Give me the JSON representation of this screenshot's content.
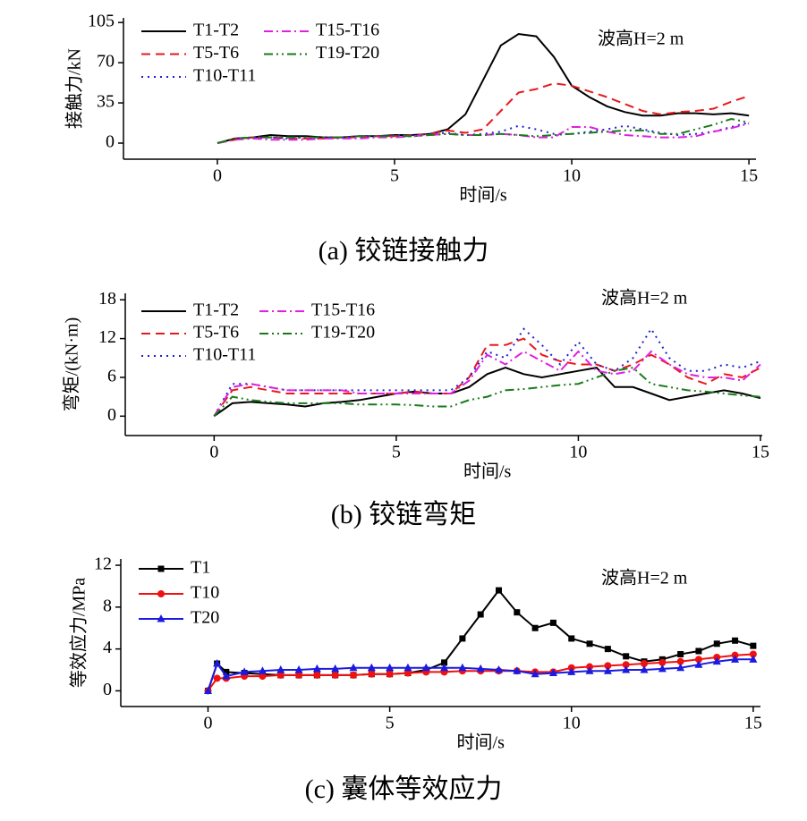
{
  "chart_data": [
    {
      "type": "line",
      "caption": "(a) 铰链接触力",
      "xlabel": "时间/s",
      "ylabel": "接触力/kN",
      "annotation": "波高H=2 m",
      "xlim": [
        -2.65,
        15.2
      ],
      "ylim": [
        -14,
        109
      ],
      "xticks": [
        0,
        5,
        10,
        15
      ],
      "yticks": [
        0,
        35,
        70,
        105
      ],
      "legend": "upper left",
      "x": [
        0,
        0.5,
        1,
        1.5,
        2,
        2.5,
        3,
        3.5,
        4,
        4.5,
        5,
        5.5,
        6,
        6.5,
        7,
        7.5,
        8,
        8.5,
        9,
        9.5,
        10,
        10.5,
        11,
        11.5,
        12,
        12.5,
        13,
        13.5,
        14,
        14.5,
        15
      ],
      "series": [
        {
          "name": "T1-T2",
          "color": "#000000",
          "linestyle": "solid",
          "values": [
            0,
            4,
            5,
            7,
            6,
            6,
            5,
            5,
            6,
            6,
            7,
            7,
            8,
            12,
            25,
            55,
            85,
            95,
            93,
            75,
            50,
            40,
            32,
            27,
            24,
            24,
            26,
            26,
            25,
            26,
            24
          ]
        },
        {
          "name": "T5-T6",
          "color": "#e8191c",
          "linestyle": "dashed",
          "values": [
            0,
            3,
            5,
            5,
            4,
            4,
            4,
            5,
            5,
            6,
            6,
            7,
            8,
            11,
            9,
            12,
            28,
            44,
            47,
            52,
            50,
            45,
            40,
            34,
            28,
            25,
            27,
            28,
            30,
            36,
            41
          ]
        },
        {
          "name": "T10-T11",
          "color": "#1f1fd0",
          "linestyle": "dotted",
          "values": [
            0,
            4,
            5,
            5,
            4,
            5,
            5,
            5,
            6,
            6,
            7,
            7,
            8,
            9,
            7,
            8,
            10,
            15,
            12,
            8,
            8,
            10,
            12,
            15,
            12,
            9,
            7,
            8,
            10,
            14,
            18
          ]
        },
        {
          "name": "T15-T16",
          "color": "#e020e0",
          "linestyle": "dashdot",
          "values": [
            0,
            3,
            4,
            3,
            3,
            3,
            4,
            4,
            4,
            5,
            5,
            6,
            7,
            8,
            7,
            7,
            8,
            7,
            5,
            5,
            14,
            14,
            10,
            7,
            6,
            5,
            5,
            6,
            10,
            13,
            17
          ]
        },
        {
          "name": "T19-T20",
          "color": "#1a7a1a",
          "linestyle": "dashdotdot",
          "values": [
            0,
            4,
            5,
            5,
            5,
            5,
            5,
            5,
            6,
            6,
            6,
            6,
            7,
            8,
            7,
            7,
            8,
            7,
            6,
            7,
            8,
            9,
            10,
            11,
            11,
            8,
            8,
            12,
            16,
            21,
            18
          ]
        }
      ]
    },
    {
      "type": "line",
      "caption": "(b) 铰链弯矩",
      "xlabel": "时间/s",
      "ylabel": "弯矩/(kN·m)",
      "annotation": "波高H=2 m",
      "xlim": [
        -2.44,
        15.05
      ],
      "ylim": [
        -3,
        19
      ],
      "xticks": [
        0,
        5,
        10,
        15
      ],
      "yticks": [
        0,
        6,
        12,
        18
      ],
      "legend": "upper left",
      "x": [
        0,
        0.5,
        1,
        1.5,
        2,
        2.5,
        3,
        3.5,
        4,
        4.5,
        5,
        5.5,
        6,
        6.5,
        7,
        7.5,
        8,
        8.5,
        9,
        9.5,
        10,
        10.5,
        11,
        11.5,
        12,
        12.5,
        13,
        13.5,
        14,
        14.5,
        15
      ],
      "series": [
        {
          "name": "T1-T2",
          "color": "#000000",
          "linestyle": "solid",
          "values": [
            0,
            2,
            2.2,
            2,
            1.8,
            1.5,
            2,
            2.2,
            2.5,
            3,
            3.5,
            3.8,
            3.5,
            3.5,
            4.5,
            6.5,
            7.5,
            6.5,
            6,
            6.5,
            7,
            7.5,
            4.5,
            4.5,
            3.5,
            2.5,
            3,
            3.5,
            4,
            3.5,
            2.8
          ]
        },
        {
          "name": "T5-T6",
          "color": "#e8191c",
          "linestyle": "dashed",
          "values": [
            0,
            4,
            4.5,
            4,
            3.5,
            3.5,
            3.5,
            3.5,
            3.5,
            3.5,
            3.5,
            3.8,
            3.5,
            3.5,
            6,
            11,
            11,
            12,
            9.5,
            8.5,
            8,
            8,
            7,
            8,
            9.5,
            8,
            6,
            5,
            6.5,
            6,
            7.5
          ]
        },
        {
          "name": "T10-T11",
          "color": "#1f1fd0",
          "linestyle": "dotted",
          "values": [
            0,
            5,
            5,
            4.5,
            4,
            4,
            4,
            4,
            4,
            4,
            4,
            4,
            4,
            4,
            6,
            10,
            9,
            13.5,
            11,
            8,
            11.5,
            8,
            7,
            9,
            13.5,
            9,
            7,
            7,
            8,
            7.5,
            8.5
          ]
        },
        {
          "name": "T15-T16",
          "color": "#e020e0",
          "linestyle": "dashdot",
          "values": [
            0,
            4.5,
            5,
            4.5,
            4,
            4,
            4,
            4,
            3.5,
            3.5,
            3.5,
            3.5,
            3.5,
            3.5,
            5.5,
            9.5,
            8,
            10,
            8.5,
            7,
            10,
            7,
            6.5,
            7,
            10,
            8,
            6.5,
            6,
            6,
            5.5,
            8
          ]
        },
        {
          "name": "T19-T20",
          "color": "#1a7a1a",
          "linestyle": "dashdotdot",
          "values": [
            0,
            3,
            2.5,
            2.2,
            2,
            2,
            2,
            2,
            1.8,
            1.8,
            1.8,
            1.7,
            1.5,
            1.5,
            2.5,
            3,
            4,
            4.2,
            4.5,
            4.8,
            5,
            6,
            7,
            7.5,
            5,
            4.5,
            4,
            3.8,
            3.5,
            3.2,
            3
          ]
        }
      ]
    },
    {
      "type": "line",
      "caption": "(c) 囊体等效应力",
      "xlabel": "时间/s",
      "ylabel": "等效应力/MPa",
      "annotation": "波高H=2 m",
      "xlim": [
        -2.4,
        15.2
      ],
      "ylim": [
        -1.5,
        12.6
      ],
      "xticks": [
        0,
        5,
        10,
        15
      ],
      "yticks": [
        0,
        4,
        8,
        12
      ],
      "legend": "upper left",
      "x": [
        0,
        0.25,
        0.5,
        1,
        1.5,
        2,
        2.5,
        3,
        3.5,
        4,
        4.5,
        5,
        5.5,
        6,
        6.5,
        7,
        7.5,
        8,
        8.5,
        9,
        9.5,
        10,
        10.5,
        11,
        11.5,
        12,
        12.5,
        13,
        13.5,
        14,
        14.5,
        15
      ],
      "series": [
        {
          "name": "T1",
          "color": "#000000",
          "linestyle": "solid",
          "marker": "square",
          "values": [
            0,
            2.6,
            1.8,
            1.7,
            1.6,
            1.5,
            1.5,
            1.5,
            1.5,
            1.5,
            1.6,
            1.6,
            1.7,
            2,
            2.7,
            5,
            7.3,
            9.6,
            7.5,
            6,
            6.5,
            5,
            4.5,
            4,
            3.3,
            2.8,
            3,
            3.5,
            3.8,
            4.5,
            4.8,
            4.3
          ]
        },
        {
          "name": "T10",
          "color": "#f01010",
          "linestyle": "solid",
          "marker": "circle",
          "values": [
            0,
            1.2,
            1.2,
            1.4,
            1.4,
            1.5,
            1.5,
            1.5,
            1.5,
            1.5,
            1.6,
            1.6,
            1.7,
            1.8,
            1.8,
            1.9,
            1.9,
            1.9,
            1.9,
            1.8,
            1.8,
            2.2,
            2.3,
            2.4,
            2.5,
            2.6,
            2.7,
            2.8,
            3,
            3.2,
            3.4,
            3.5
          ]
        },
        {
          "name": "T20",
          "color": "#1a1ae0",
          "linestyle": "solid",
          "marker": "triangle",
          "values": [
            0,
            2.6,
            1.4,
            1.8,
            1.9,
            2,
            2,
            2.1,
            2.1,
            2.2,
            2.2,
            2.2,
            2.2,
            2.2,
            2.2,
            2.2,
            2.1,
            2,
            1.9,
            1.6,
            1.7,
            1.8,
            1.9,
            1.9,
            2,
            2,
            2.1,
            2.2,
            2.5,
            2.8,
            3,
            3
          ]
        }
      ]
    }
  ]
}
